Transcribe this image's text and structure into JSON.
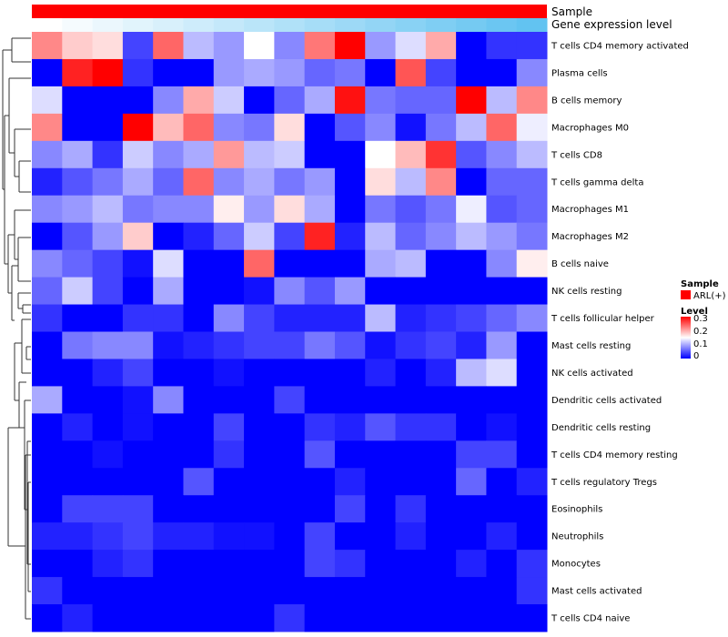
{
  "chart_data": {
    "type": "heatmap",
    "title": "",
    "annotation_tracks": [
      {
        "label": "Sample",
        "palette": "sample"
      },
      {
        "label": "Gene expression level",
        "palette": "gradient"
      }
    ],
    "gene_expression_levels": [
      0.0,
      0.06,
      0.12,
      0.18,
      0.24,
      0.3,
      0.36,
      0.42,
      0.48,
      0.54,
      0.6,
      0.66,
      0.72,
      0.78,
      0.84,
      0.9,
      0.96
    ],
    "rows": [
      "T cells CD4 memory activated",
      "Plasma cells",
      "B cells memory",
      "Macrophages M0",
      "T cells CD8",
      "T cells gamma delta",
      "Macrophages M1",
      "Macrophages M2",
      "B cells naive",
      "NK cells resting",
      "T cells follicular helper",
      "Mast cells resting",
      "NK cells activated",
      "Dendritic cells activated",
      "Dendritic cells resting",
      "T cells CD4 memory resting",
      "T cells regulatory  Tregs",
      "Eosinophils",
      "Neutrophils",
      "Monocytes",
      "Mast cells activated",
      "T cells CD4 naive"
    ],
    "values": [
      [
        0.22,
        0.18,
        0.17,
        0.04,
        0.24,
        0.11,
        0.09,
        0.15,
        0.08,
        0.23,
        0.3,
        0.09,
        0.13,
        0.2,
        0.0,
        0.03,
        0.03
      ],
      [
        0.0,
        0.28,
        0.3,
        0.03,
        0.0,
        0.0,
        0.09,
        0.1,
        0.09,
        0.06,
        0.07,
        0.0,
        0.25,
        0.04,
        0.0,
        0.0,
        0.08
      ],
      [
        0.13,
        0.0,
        0.0,
        0.0,
        0.08,
        0.2,
        0.12,
        0.0,
        0.06,
        0.1,
        0.29,
        0.07,
        0.06,
        0.06,
        0.3,
        0.11,
        0.22
      ],
      [
        0.22,
        0.0,
        0.0,
        0.3,
        0.19,
        0.24,
        0.08,
        0.07,
        0.17,
        0.0,
        0.05,
        0.08,
        0.01,
        0.07,
        0.11,
        0.24,
        0.14
      ],
      [
        0.08,
        0.1,
        0.03,
        0.12,
        0.08,
        0.1,
        0.21,
        0.11,
        0.12,
        0.0,
        0.0,
        0.15,
        0.19,
        0.27,
        0.05,
        0.08,
        0.11
      ],
      [
        0.02,
        0.05,
        0.07,
        0.1,
        0.06,
        0.24,
        0.08,
        0.1,
        0.07,
        0.09,
        0.0,
        0.17,
        0.11,
        0.22,
        0.0,
        0.06,
        0.06
      ],
      [
        0.08,
        0.09,
        0.11,
        0.07,
        0.08,
        0.08,
        0.16,
        0.09,
        0.17,
        0.1,
        0.0,
        0.07,
        0.05,
        0.07,
        0.14,
        0.05,
        0.06
      ],
      [
        0.0,
        0.05,
        0.09,
        0.18,
        0.0,
        0.02,
        0.06,
        0.12,
        0.04,
        0.28,
        0.02,
        0.11,
        0.06,
        0.08,
        0.11,
        0.09,
        0.07
      ],
      [
        0.08,
        0.06,
        0.04,
        0.01,
        0.13,
        0.0,
        0.0,
        0.24,
        0.0,
        0.0,
        0.0,
        0.1,
        0.11,
        0.0,
        0.0,
        0.08,
        0.16
      ],
      [
        0.06,
        0.12,
        0.04,
        0.0,
        0.1,
        0.0,
        0.0,
        0.01,
        0.08,
        0.05,
        0.09,
        0.0,
        0.0,
        0.0,
        0.0,
        0.0,
        0.0
      ],
      [
        0.03,
        0.0,
        0.0,
        0.03,
        0.03,
        0.0,
        0.08,
        0.04,
        0.02,
        0.02,
        0.02,
        0.11,
        0.02,
        0.03,
        0.04,
        0.06,
        0.08
      ],
      [
        0.0,
        0.07,
        0.08,
        0.08,
        0.01,
        0.02,
        0.03,
        0.04,
        0.04,
        0.07,
        0.05,
        0.01,
        0.03,
        0.04,
        0.02,
        0.09,
        0.0
      ],
      [
        0.0,
        0.0,
        0.02,
        0.04,
        0.0,
        0.0,
        0.01,
        0.0,
        0.0,
        0.0,
        0.0,
        0.02,
        0.0,
        0.02,
        0.11,
        0.13,
        0.0
      ],
      [
        0.1,
        0.0,
        0.0,
        0.01,
        0.08,
        0.0,
        0.0,
        0.0,
        0.04,
        0.0,
        0.0,
        0.0,
        0.0,
        0.0,
        0.0,
        0.0,
        0.0
      ],
      [
        0.0,
        0.02,
        0.0,
        0.01,
        0.0,
        0.0,
        0.04,
        0.0,
        0.0,
        0.03,
        0.02,
        0.05,
        0.03,
        0.03,
        0.0,
        0.01,
        0.0
      ],
      [
        0.0,
        0.0,
        0.01,
        0.0,
        0.0,
        0.0,
        0.03,
        0.0,
        0.0,
        0.05,
        0.0,
        0.0,
        0.0,
        0.0,
        0.04,
        0.04,
        0.0
      ],
      [
        0.0,
        0.0,
        0.0,
        0.0,
        0.0,
        0.05,
        0.0,
        0.0,
        0.0,
        0.0,
        0.02,
        0.0,
        0.0,
        0.0,
        0.06,
        0.0,
        0.02
      ],
      [
        0.0,
        0.04,
        0.04,
        0.04,
        0.0,
        0.0,
        0.0,
        0.0,
        0.0,
        0.0,
        0.04,
        0.0,
        0.03,
        0.0,
        0.0,
        0.0,
        0.0
      ],
      [
        0.02,
        0.02,
        0.03,
        0.04,
        0.02,
        0.02,
        0.01,
        0.01,
        0.0,
        0.04,
        0.0,
        0.0,
        0.02,
        0.0,
        0.0,
        0.02,
        0.0
      ],
      [
        0.0,
        0.0,
        0.02,
        0.03,
        0.0,
        0.0,
        0.0,
        0.0,
        0.0,
        0.04,
        0.03,
        0.0,
        0.0,
        0.0,
        0.02,
        0.0,
        0.03
      ],
      [
        0.03,
        0.0,
        0.0,
        0.0,
        0.0,
        0.0,
        0.0,
        0.0,
        0.0,
        0.0,
        0.0,
        0.0,
        0.0,
        0.0,
        0.0,
        0.0,
        0.03
      ],
      [
        0.0,
        0.02,
        0.0,
        0.0,
        0.0,
        0.0,
        0.0,
        0.0,
        0.03,
        0.0,
        0.0,
        0.0,
        0.0,
        0.0,
        0.0,
        0.0,
        0.0
      ]
    ],
    "color_scale": {
      "domain": [
        0,
        0.15,
        0.3
      ],
      "colors": [
        "#0000ff",
        "#ffffff",
        "#ff0000"
      ]
    },
    "legend": {
      "position": "right",
      "sample": {
        "title": "Sample",
        "label": "ARL(+)",
        "color": "#ff0000"
      },
      "level": {
        "title": "Level",
        "ticks": [
          "0.3",
          "0.2",
          "0.1",
          "0"
        ]
      }
    },
    "gradient_colors": [
      "#ffffff",
      "#5bc0f0"
    ],
    "dendrogram": "row-clustering tree on left"
  }
}
